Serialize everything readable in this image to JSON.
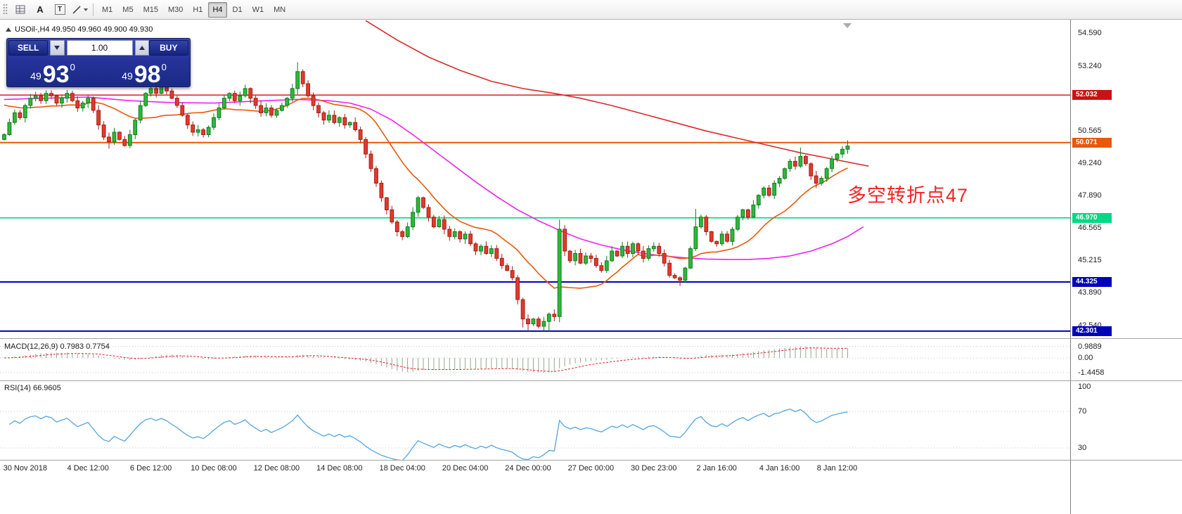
{
  "toolbar": {
    "tools": [
      {
        "name": "chart-grid"
      },
      {
        "name": "cursor-tool",
        "label": "A"
      },
      {
        "name": "text-tool",
        "label": "T"
      },
      {
        "name": "shapes-tool"
      }
    ],
    "timeframes": [
      "M1",
      "M5",
      "M15",
      "M30",
      "H1",
      "H4",
      "D1",
      "W1",
      "MN"
    ],
    "active_timeframe": "H4"
  },
  "quote_bar": {
    "symbol_line": "USOil-,H4 49.950 49.960 49.900 49.930"
  },
  "trade_panel": {
    "sell_label": "SELL",
    "buy_label": "BUY",
    "volume": "1.00",
    "sell_price": {
      "int": "49",
      "main": "93",
      "sup": "0"
    },
    "buy_price": {
      "int": "49",
      "main": "98",
      "sup": "0"
    }
  },
  "annotation": {
    "text": "多空转折点47",
    "color": "#f52222"
  },
  "price_axis": {
    "labels": [
      "54.590",
      "53.240",
      "51.915",
      "50.565",
      "49.240",
      "47.890",
      "46.565",
      "45.215",
      "43.890",
      "42.540"
    ]
  },
  "hlines": [
    {
      "price": 52.032,
      "label": "52.032",
      "color": "#cc1111",
      "width": 1.4
    },
    {
      "price": 50.071,
      "label": "50.071",
      "color": "#e8590c",
      "width": 2
    },
    {
      "price": 46.97,
      "label": "46.970",
      "color": "#00d985",
      "width": 1.6
    },
    {
      "price": 44.325,
      "label": "44.325",
      "color": "#0000bb",
      "width": 2
    },
    {
      "price": 42.301,
      "label": "42.301",
      "color": "#0000bb",
      "width": 2
    }
  ],
  "macd": {
    "title": "MACD(12,26,9) 0.7983 0.7754",
    "axis": [
      {
        "text": "0.9889",
        "v": 0.9889
      },
      {
        "text": "0.00",
        "v": 0
      },
      {
        "text": "-1.4458",
        "v": -1.4458
      }
    ]
  },
  "rsi": {
    "title": "RSI(14) 66.9605",
    "axis": [
      {
        "text": "100",
        "r": 100
      },
      {
        "text": "70",
        "r": 70
      },
      {
        "text": "30",
        "r": 30
      }
    ],
    "levels": [
      70,
      30
    ]
  },
  "time_axis": [
    {
      "text": "30 Nov 2018",
      "i": 4
    },
    {
      "text": "4 Dec 12:00",
      "i": 16
    },
    {
      "text": "6 Dec 12:00",
      "i": 28
    },
    {
      "text": "10 Dec 08:00",
      "i": 40
    },
    {
      "text": "12 Dec 08:00",
      "i": 52
    },
    {
      "text": "14 Dec 08:00",
      "i": 64
    },
    {
      "text": "18 Dec 04:00",
      "i": 76
    },
    {
      "text": "20 Dec 04:00",
      "i": 88
    },
    {
      "text": "24 Dec 00:00",
      "i": 100
    },
    {
      "text": "27 Dec 00:00",
      "i": 112
    },
    {
      "text": "30 Dec 23:00",
      "i": 124
    },
    {
      "text": "2 Jan 16:00",
      "i": 136
    },
    {
      "text": "4 Jan 16:00",
      "i": 148
    },
    {
      "text": "8 Jan 12:00",
      "i": 159
    }
  ],
  "chart_data": {
    "type": "candlestick",
    "symbol": "USOil-",
    "timeframe": "H4",
    "ylim": [
      41.99,
      55.08
    ],
    "first_open": 50.2,
    "pad_close": 51.7,
    "closes": [
      50.4,
      50.9,
      51.3,
      51.1,
      51.6,
      51.9,
      52.0,
      51.8,
      52.1,
      52.0,
      51.7,
      51.9,
      52.1,
      51.8,
      51.5,
      51.7,
      51.9,
      51.4,
      50.8,
      50.3,
      50.1,
      50.5,
      50.2,
      49.95,
      50.4,
      51.0,
      51.6,
      52.1,
      52.3,
      52.1,
      52.4,
      52.2,
      51.9,
      51.6,
      51.2,
      50.8,
      50.5,
      50.6,
      50.4,
      50.7,
      51.1,
      51.5,
      51.9,
      52.1,
      51.8,
      52.0,
      52.3,
      51.9,
      51.6,
      51.3,
      51.5,
      51.2,
      51.4,
      51.6,
      51.9,
      52.3,
      53.0,
      52.5,
      52.0,
      51.6,
      51.3,
      51.0,
      51.2,
      50.9,
      51.1,
      50.8,
      50.9,
      50.6,
      50.2,
      49.6,
      49.0,
      48.4,
      47.8,
      47.3,
      46.8,
      46.4,
      46.2,
      46.6,
      47.2,
      47.8,
      47.4,
      47.0,
      46.6,
      46.9,
      46.5,
      46.2,
      46.4,
      46.1,
      46.3,
      45.9,
      45.6,
      45.8,
      45.5,
      45.7,
      45.3,
      45.0,
      44.8,
      44.5,
      43.6,
      42.8,
      42.6,
      42.8,
      42.5,
      42.7,
      43.0,
      42.9,
      46.5,
      45.6,
      45.2,
      45.5,
      45.1,
      45.4,
      45.3,
      45.0,
      44.8,
      45.2,
      45.6,
      45.4,
      45.8,
      45.5,
      45.9,
      45.6,
      45.3,
      45.7,
      45.8,
      45.5,
      45.1,
      44.6,
      44.5,
      44.4,
      44.9,
      45.7,
      46.6,
      47.0,
      46.4,
      46.0,
      45.9,
      46.3,
      46.0,
      46.5,
      47.0,
      47.3,
      47.0,
      47.5,
      47.9,
      48.2,
      47.9,
      48.4,
      48.6,
      49.0,
      49.3,
      49.1,
      49.5,
      49.2,
      48.7,
      48.4,
      48.6,
      49.0,
      49.4,
      49.6,
      49.8,
      49.93
    ],
    "wick_boost": {
      "20": [
        0,
        0.15
      ],
      "56": [
        0.3,
        0.05
      ],
      "99": [
        0,
        0.15
      ],
      "100": [
        0.05,
        0.3
      ],
      "104": [
        0,
        0.2
      ],
      "106": [
        0.25,
        0.1
      ],
      "129": [
        0,
        0.15
      ],
      "132": [
        0.55,
        0.05
      ],
      "152": [
        0.25,
        0
      ],
      "161": [
        0.14,
        0
      ]
    },
    "up_color": "#2db83d",
    "up_stroke": "#0f7d1b",
    "down_color": "#e23a2e",
    "down_stroke": "#a61c12",
    "ma_magenta": {
      "color": "#ee22ee",
      "points": [
        [
          0,
          51.85
        ],
        [
          8,
          51.9
        ],
        [
          16,
          51.95
        ],
        [
          24,
          51.8
        ],
        [
          32,
          51.72
        ],
        [
          40,
          51.7
        ],
        [
          48,
          51.78
        ],
        [
          56,
          51.85
        ],
        [
          62,
          51.8
        ],
        [
          66,
          51.7
        ],
        [
          70,
          51.45
        ],
        [
          74,
          51.0
        ],
        [
          78,
          50.4
        ],
        [
          82,
          49.75
        ],
        [
          86,
          49.1
        ],
        [
          90,
          48.45
        ],
        [
          94,
          47.85
        ],
        [
          98,
          47.3
        ],
        [
          102,
          46.85
        ],
        [
          106,
          46.45
        ],
        [
          110,
          46.1
        ],
        [
          114,
          45.85
        ],
        [
          118,
          45.65
        ],
        [
          122,
          45.5
        ],
        [
          126,
          45.4
        ],
        [
          130,
          45.32
        ],
        [
          134,
          45.27
        ],
        [
          138,
          45.25
        ],
        [
          142,
          45.25
        ],
        [
          146,
          45.3
        ],
        [
          150,
          45.4
        ],
        [
          154,
          45.6
        ],
        [
          158,
          45.9
        ],
        [
          161,
          46.2
        ],
        [
          164,
          46.6
        ]
      ]
    },
    "ma_red": {
      "color": "#d92b2b",
      "points": [
        [
          69,
          55.1
        ],
        [
          75,
          54.3
        ],
        [
          81,
          53.6
        ],
        [
          87,
          53.05
        ],
        [
          93,
          52.6
        ],
        [
          99,
          52.3
        ],
        [
          105,
          52.1
        ],
        [
          110,
          51.9
        ],
        [
          116,
          51.6
        ],
        [
          122,
          51.25
        ],
        [
          128,
          50.9
        ],
        [
          134,
          50.55
        ],
        [
          140,
          50.25
        ],
        [
          146,
          49.95
        ],
        [
          152,
          49.65
        ],
        [
          158,
          49.4
        ],
        [
          165,
          49.1
        ]
      ]
    },
    "ma_orange": {
      "color": "#e8590c",
      "period": 16
    },
    "macd": {
      "fast": 12,
      "slow": 26,
      "signal": 9,
      "hist_color": "#96a596",
      "signal_color": "#dd2222",
      "display_max": 0.9889,
      "display_min": -1.4458
    },
    "rsi": {
      "period": 14,
      "color": "#53a6dd"
    }
  }
}
